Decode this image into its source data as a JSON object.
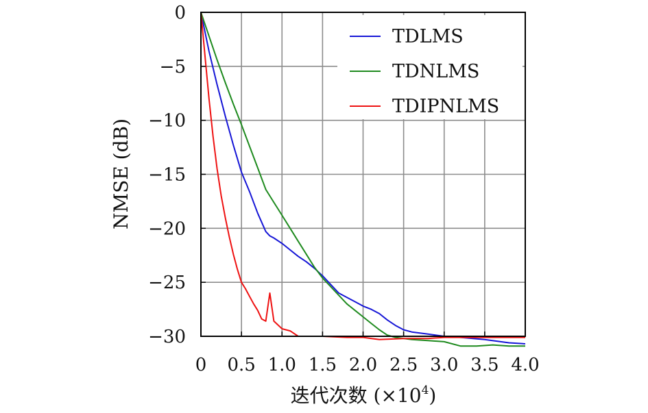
{
  "chart_data": {
    "type": "line",
    "xlabel": "迭代次数 (×10",
    "xlabel_sup": "4",
    "xlabel_close": ")",
    "ylabel": "NMSE (dB)",
    "xlim": [
      0,
      4
    ],
    "ylim": [
      -30,
      0
    ],
    "x_ticks": [
      0,
      0.5,
      1.0,
      1.5,
      2.0,
      2.5,
      3.0,
      3.5,
      4.0
    ],
    "x_tick_labels": [
      "0",
      "0.5",
      "1.0",
      "1.5",
      "2.0",
      "2.5",
      "3.0",
      "3.5",
      "4.0"
    ],
    "y_ticks": [
      0,
      -5,
      -10,
      -15,
      -20,
      -25,
      -30
    ],
    "y_tick_labels": [
      "0",
      "−5",
      "−10",
      "−15",
      "−20",
      "−25",
      "−30"
    ],
    "grid": true,
    "legend_position": "top-right",
    "series": [
      {
        "name": "TDLMS",
        "color": "#1515d6",
        "points": [
          [
            0,
            0
          ],
          [
            0.1,
            -3.6
          ],
          [
            0.2,
            -6.7
          ],
          [
            0.3,
            -9.6
          ],
          [
            0.4,
            -12.3
          ],
          [
            0.5,
            -14.8
          ],
          [
            0.6,
            -16.6
          ],
          [
            0.7,
            -18.6
          ],
          [
            0.8,
            -20.3
          ],
          [
            0.85,
            -20.7
          ],
          [
            0.9,
            -20.9
          ],
          [
            1.0,
            -21.4
          ],
          [
            1.1,
            -22.0
          ],
          [
            1.2,
            -22.6
          ],
          [
            1.3,
            -23.1
          ],
          [
            1.4,
            -23.7
          ],
          [
            1.5,
            -24.4
          ],
          [
            1.6,
            -25.2
          ],
          [
            1.7,
            -26.0
          ],
          [
            1.8,
            -26.4
          ],
          [
            1.9,
            -26.8
          ],
          [
            2.0,
            -27.2
          ],
          [
            2.1,
            -27.5
          ],
          [
            2.2,
            -27.9
          ],
          [
            2.3,
            -28.5
          ],
          [
            2.4,
            -29.0
          ],
          [
            2.5,
            -29.4
          ],
          [
            2.6,
            -29.6
          ],
          [
            2.8,
            -29.8
          ],
          [
            3.0,
            -30.0
          ],
          [
            3.2,
            -30.1
          ],
          [
            3.5,
            -30.3
          ],
          [
            3.8,
            -30.6
          ],
          [
            4.0,
            -30.7
          ]
        ]
      },
      {
        "name": "TDNLMS",
        "color": "#1e8a1e",
        "points": [
          [
            0,
            0
          ],
          [
            0.1,
            -2.2
          ],
          [
            0.2,
            -4.4
          ],
          [
            0.3,
            -6.5
          ],
          [
            0.4,
            -8.5
          ],
          [
            0.5,
            -10.4
          ],
          [
            0.6,
            -12.4
          ],
          [
            0.7,
            -14.4
          ],
          [
            0.8,
            -16.4
          ],
          [
            0.9,
            -17.6
          ],
          [
            1.0,
            -18.8
          ],
          [
            1.1,
            -20.0
          ],
          [
            1.2,
            -21.2
          ],
          [
            1.3,
            -22.4
          ],
          [
            1.4,
            -23.6
          ],
          [
            1.5,
            -24.6
          ],
          [
            1.6,
            -25.4
          ],
          [
            1.7,
            -26.2
          ],
          [
            1.8,
            -27.0
          ],
          [
            1.9,
            -27.6
          ],
          [
            2.0,
            -28.2
          ],
          [
            2.1,
            -28.8
          ],
          [
            2.2,
            -29.4
          ],
          [
            2.3,
            -29.9
          ],
          [
            2.4,
            -30.1
          ],
          [
            2.6,
            -30.3
          ],
          [
            2.8,
            -30.4
          ],
          [
            3.0,
            -30.5
          ],
          [
            3.2,
            -30.9
          ],
          [
            3.4,
            -30.9
          ],
          [
            3.6,
            -30.8
          ],
          [
            3.8,
            -30.9
          ],
          [
            4.0,
            -30.9
          ]
        ]
      },
      {
        "name": "TDIPNLMS",
        "color": "#ee1111",
        "points": [
          [
            0,
            0
          ],
          [
            0.05,
            -4.0
          ],
          [
            0.1,
            -8.0
          ],
          [
            0.15,
            -11.5
          ],
          [
            0.2,
            -14.5
          ],
          [
            0.25,
            -17.0
          ],
          [
            0.3,
            -19.0
          ],
          [
            0.35,
            -20.8
          ],
          [
            0.4,
            -22.4
          ],
          [
            0.45,
            -23.8
          ],
          [
            0.5,
            -25.0
          ],
          [
            0.55,
            -25.6
          ],
          [
            0.6,
            -26.3
          ],
          [
            0.65,
            -27.0
          ],
          [
            0.7,
            -27.6
          ],
          [
            0.75,
            -28.4
          ],
          [
            0.8,
            -28.6
          ],
          [
            0.85,
            -26.0
          ],
          [
            0.9,
            -28.6
          ],
          [
            1.0,
            -29.3
          ],
          [
            1.1,
            -29.5
          ],
          [
            1.2,
            -30.0
          ],
          [
            1.3,
            -30.0
          ],
          [
            1.5,
            -30.0
          ],
          [
            1.8,
            -30.1
          ],
          [
            2.0,
            -30.1
          ],
          [
            2.2,
            -30.3
          ],
          [
            2.5,
            -30.2
          ],
          [
            2.8,
            -30.2
          ],
          [
            3.0,
            -30.1
          ],
          [
            3.3,
            -30.1
          ],
          [
            3.6,
            -30.1
          ],
          [
            4.0,
            -30.1
          ]
        ]
      }
    ]
  }
}
